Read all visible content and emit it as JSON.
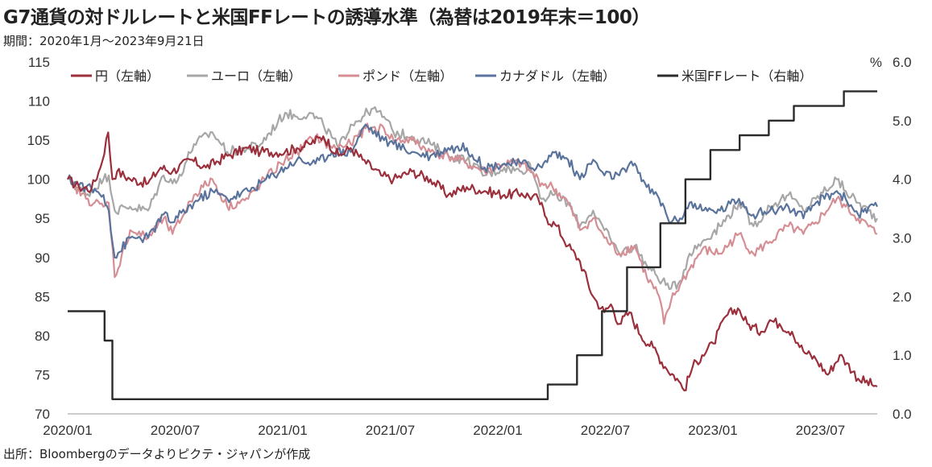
{
  "title": "G7通貨の対ドルレートと米国FFレートの誘導水準（為替は2019年末＝100）",
  "subtitle": "期間：2020年1月～2023年9月21日",
  "source": "出所：Bloombergのデータよりピクテ・ジャパンが作成",
  "chart_data": {
    "type": "line",
    "x_tick_labels": [
      "2020/01",
      "2020/07",
      "2021/01",
      "2021/07",
      "2022/01",
      "2022/07",
      "2023/01",
      "2023/07"
    ],
    "x_range": [
      "2020-01-01",
      "2023-09-21"
    ],
    "left_axis": {
      "ylim": [
        70,
        115
      ],
      "ticks": [
        70,
        75,
        80,
        85,
        90,
        95,
        100,
        105,
        110,
        115
      ]
    },
    "right_axis": {
      "unit": "%",
      "ylim": [
        0.0,
        6.0
      ],
      "ticks": [
        "0.0",
        "1.0",
        "2.0",
        "3.0",
        "4.0",
        "5.0",
        "6.0"
      ]
    },
    "grid": false,
    "legend_position": "top",
    "series": [
      {
        "name": "円（左軸）",
        "axis": "left",
        "color": "#9b2f3b",
        "points": [
          [
            "2020-01-01",
            100
          ],
          [
            "2020-01-20",
            99
          ],
          [
            "2020-02-10",
            98.8
          ],
          [
            "2020-02-25",
            101.5
          ],
          [
            "2020-03-09",
            106
          ],
          [
            "2020-03-16",
            100
          ],
          [
            "2020-03-24",
            101
          ],
          [
            "2020-04-15",
            100
          ],
          [
            "2020-05-15",
            99.5
          ],
          [
            "2020-06-05",
            101.5
          ],
          [
            "2020-06-25",
            101
          ],
          [
            "2020-07-25",
            102.5
          ],
          [
            "2020-08-20",
            101.5
          ],
          [
            "2020-09-25",
            103
          ],
          [
            "2020-10-30",
            104
          ],
          [
            "2020-11-20",
            103.5
          ],
          [
            "2020-12-31",
            103.5
          ],
          [
            "2021-01-20",
            104
          ],
          [
            "2021-02-10",
            104.5
          ],
          [
            "2021-03-05",
            105.5
          ],
          [
            "2021-03-31",
            103
          ],
          [
            "2021-04-20",
            104
          ],
          [
            "2021-05-10",
            102.5
          ],
          [
            "2021-06-10",
            100.5
          ],
          [
            "2021-07-01",
            100
          ],
          [
            "2021-08-01",
            101
          ],
          [
            "2021-09-01",
            100
          ],
          [
            "2021-10-01",
            98
          ],
          [
            "2021-11-01",
            99
          ],
          [
            "2021-12-01",
            98.5
          ],
          [
            "2022-01-03",
            98
          ],
          [
            "2022-02-01",
            98.2
          ],
          [
            "2022-03-01",
            97.5
          ],
          [
            "2022-03-15",
            95
          ],
          [
            "2022-04-01",
            94
          ],
          [
            "2022-04-20",
            91.5
          ],
          [
            "2022-05-10",
            89.5
          ],
          [
            "2022-06-01",
            85
          ],
          [
            "2022-06-20",
            83
          ],
          [
            "2022-07-01",
            84
          ],
          [
            "2022-07-15",
            81.5
          ],
          [
            "2022-08-01",
            83
          ],
          [
            "2022-08-20",
            80
          ],
          [
            "2022-09-10",
            78.5
          ],
          [
            "2022-09-30",
            76
          ],
          [
            "2022-10-20",
            74.5
          ],
          [
            "2022-11-01",
            73
          ],
          [
            "2022-11-15",
            76
          ],
          [
            "2022-12-01",
            77.5
          ],
          [
            "2022-12-20",
            79
          ],
          [
            "2023-01-10",
            82.5
          ],
          [
            "2023-01-30",
            83.5
          ],
          [
            "2023-02-15",
            81.5
          ],
          [
            "2023-03-10",
            80.5
          ],
          [
            "2023-03-25",
            82
          ],
          [
            "2023-04-10",
            81.5
          ],
          [
            "2023-05-01",
            80.5
          ],
          [
            "2023-05-20",
            78
          ],
          [
            "2023-06-10",
            77
          ],
          [
            "2023-06-30",
            75
          ],
          [
            "2023-07-20",
            77.5
          ],
          [
            "2023-08-01",
            76.5
          ],
          [
            "2023-08-20",
            74.5
          ],
          [
            "2023-09-21",
            73.5
          ]
        ]
      },
      {
        "name": "ユーロ（左軸）",
        "axis": "left",
        "color": "#a7a7a7",
        "points": [
          [
            "2020-01-01",
            100
          ],
          [
            "2020-02-01",
            98
          ],
          [
            "2020-03-01",
            100
          ],
          [
            "2020-03-10",
            100.5
          ],
          [
            "2020-03-20",
            96
          ],
          [
            "2020-04-15",
            96.5
          ],
          [
            "2020-05-15",
            96
          ],
          [
            "2020-06-10",
            100.5
          ],
          [
            "2020-07-01",
            99.5
          ],
          [
            "2020-07-31",
            104.5
          ],
          [
            "2020-08-31",
            106
          ],
          [
            "2020-09-25",
            103.5
          ],
          [
            "2020-10-30",
            104
          ],
          [
            "2020-11-20",
            104.5
          ],
          [
            "2020-12-31",
            108.5
          ],
          [
            "2021-01-20",
            108
          ],
          [
            "2021-02-10",
            108.5
          ],
          [
            "2021-03-05",
            107
          ],
          [
            "2021-03-31",
            104
          ],
          [
            "2021-04-20",
            107
          ],
          [
            "2021-05-10",
            108
          ],
          [
            "2021-05-25",
            109
          ],
          [
            "2021-06-15",
            108
          ],
          [
            "2021-07-01",
            106
          ],
          [
            "2021-08-01",
            105.5
          ],
          [
            "2021-09-01",
            104.5
          ],
          [
            "2021-10-01",
            103
          ],
          [
            "2021-11-01",
            102.5
          ],
          [
            "2021-12-01",
            100.5
          ],
          [
            "2022-01-03",
            101.5
          ],
          [
            "2022-02-01",
            101
          ],
          [
            "2022-02-15",
            102
          ],
          [
            "2022-03-07",
            97.5
          ],
          [
            "2022-03-25",
            98
          ],
          [
            "2022-04-20",
            97
          ],
          [
            "2022-05-10",
            94
          ],
          [
            "2022-06-01",
            96
          ],
          [
            "2022-06-20",
            93.5
          ],
          [
            "2022-07-15",
            90.5
          ],
          [
            "2022-08-10",
            91.5
          ],
          [
            "2022-08-30",
            89
          ],
          [
            "2022-09-25",
            87
          ],
          [
            "2022-10-10",
            86
          ],
          [
            "2022-10-25",
            87
          ],
          [
            "2022-11-10",
            90.5
          ],
          [
            "2022-12-01",
            92
          ],
          [
            "2022-12-31",
            94
          ],
          [
            "2023-02-01",
            97
          ],
          [
            "2023-02-25",
            94
          ],
          [
            "2023-03-25",
            96.5
          ],
          [
            "2023-04-25",
            98
          ],
          [
            "2023-05-20",
            96
          ],
          [
            "2023-06-10",
            97.5
          ],
          [
            "2023-07-15",
            100
          ],
          [
            "2023-07-30",
            98.5
          ],
          [
            "2023-08-20",
            97
          ],
          [
            "2023-09-21",
            95
          ]
        ]
      },
      {
        "name": "ポンド（左軸）",
        "axis": "left",
        "color": "#d58e93",
        "points": [
          [
            "2020-01-01",
            100
          ],
          [
            "2020-02-01",
            97.5
          ],
          [
            "2020-03-01",
            96.5
          ],
          [
            "2020-03-10",
            97
          ],
          [
            "2020-03-20",
            87.5
          ],
          [
            "2020-04-15",
            93.5
          ],
          [
            "2020-05-15",
            92.5
          ],
          [
            "2020-06-10",
            95
          ],
          [
            "2020-06-25",
            93
          ],
          [
            "2020-07-31",
            98
          ],
          [
            "2020-08-31",
            100
          ],
          [
            "2020-09-25",
            96.5
          ],
          [
            "2020-10-30",
            97.5
          ],
          [
            "2020-11-20",
            99.5
          ],
          [
            "2020-12-31",
            102.5
          ],
          [
            "2021-01-20",
            103.5
          ],
          [
            "2021-02-20",
            105.5
          ],
          [
            "2021-03-20",
            104
          ],
          [
            "2021-04-20",
            104.5
          ],
          [
            "2021-05-15",
            106.5
          ],
          [
            "2021-06-15",
            106.5
          ],
          [
            "2021-07-01",
            105
          ],
          [
            "2021-08-01",
            105
          ],
          [
            "2021-09-01",
            103.5
          ],
          [
            "2021-10-01",
            103
          ],
          [
            "2021-11-01",
            102
          ],
          [
            "2021-12-01",
            101
          ],
          [
            "2022-01-03",
            102
          ],
          [
            "2022-02-01",
            102
          ],
          [
            "2022-03-07",
            99.5
          ],
          [
            "2022-03-25",
            99
          ],
          [
            "2022-04-20",
            97
          ],
          [
            "2022-05-10",
            93.5
          ],
          [
            "2022-06-01",
            95
          ],
          [
            "2022-06-20",
            92.5
          ],
          [
            "2022-07-15",
            90.5
          ],
          [
            "2022-08-10",
            91.5
          ],
          [
            "2022-08-30",
            87.5
          ],
          [
            "2022-09-20",
            85
          ],
          [
            "2022-09-28",
            81.5
          ],
          [
            "2022-10-10",
            84.5
          ],
          [
            "2022-10-25",
            86.5
          ],
          [
            "2022-11-10",
            88.5
          ],
          [
            "2022-12-01",
            91
          ],
          [
            "2022-12-31",
            90.5
          ],
          [
            "2023-02-01",
            93
          ],
          [
            "2023-02-25",
            90.5
          ],
          [
            "2023-03-25",
            92
          ],
          [
            "2023-04-25",
            94
          ],
          [
            "2023-05-20",
            93
          ],
          [
            "2023-06-10",
            94.5
          ],
          [
            "2023-07-15",
            97.5
          ],
          [
            "2023-07-30",
            96.5
          ],
          [
            "2023-08-20",
            95
          ],
          [
            "2023-09-21",
            93
          ]
        ]
      },
      {
        "name": "カナダドル（左軸）",
        "axis": "left",
        "color": "#5a739c",
        "points": [
          [
            "2020-01-01",
            100
          ],
          [
            "2020-02-01",
            99
          ],
          [
            "2020-03-01",
            98
          ],
          [
            "2020-03-10",
            96
          ],
          [
            "2020-03-20",
            90
          ],
          [
            "2020-04-15",
            92.5
          ],
          [
            "2020-05-15",
            92.5
          ],
          [
            "2020-06-10",
            95.5
          ],
          [
            "2020-06-25",
            94.5
          ],
          [
            "2020-07-31",
            97
          ],
          [
            "2020-08-31",
            98.5
          ],
          [
            "2020-09-25",
            97.5
          ],
          [
            "2020-10-30",
            98.5
          ],
          [
            "2020-11-20",
            99.5
          ],
          [
            "2020-12-31",
            101.5
          ],
          [
            "2021-01-20",
            102.5
          ],
          [
            "2021-02-20",
            102
          ],
          [
            "2021-03-20",
            103.5
          ],
          [
            "2021-04-20",
            103.5
          ],
          [
            "2021-05-15",
            107
          ],
          [
            "2021-06-15",
            105
          ],
          [
            "2021-07-01",
            104.5
          ],
          [
            "2021-08-01",
            103.5
          ],
          [
            "2021-09-01",
            103
          ],
          [
            "2021-10-01",
            104
          ],
          [
            "2021-11-01",
            104
          ],
          [
            "2021-12-01",
            101.5
          ],
          [
            "2022-01-03",
            102
          ],
          [
            "2022-02-01",
            102
          ],
          [
            "2022-03-07",
            101.5
          ],
          [
            "2022-03-25",
            103.5
          ],
          [
            "2022-04-20",
            102.5
          ],
          [
            "2022-05-10",
            100
          ],
          [
            "2022-06-01",
            102.5
          ],
          [
            "2022-06-20",
            100.5
          ],
          [
            "2022-07-15",
            100.5
          ],
          [
            "2022-08-10",
            102
          ],
          [
            "2022-08-30",
            99
          ],
          [
            "2022-09-20",
            97.5
          ],
          [
            "2022-10-10",
            94.5
          ],
          [
            "2022-10-25",
            95
          ],
          [
            "2022-11-10",
            97
          ],
          [
            "2022-12-01",
            96
          ],
          [
            "2022-12-31",
            96
          ],
          [
            "2023-02-01",
            97.5
          ],
          [
            "2023-02-25",
            95.5
          ],
          [
            "2023-03-25",
            96
          ],
          [
            "2023-04-25",
            96.5
          ],
          [
            "2023-05-20",
            95
          ],
          [
            "2023-06-10",
            97
          ],
          [
            "2023-07-15",
            98.5
          ],
          [
            "2023-07-30",
            97.5
          ],
          [
            "2023-08-20",
            95.5
          ],
          [
            "2023-09-21",
            96.5
          ]
        ]
      },
      {
        "name": "米国FFレート（右軸）",
        "axis": "right",
        "color": "#2b2b2b",
        "step": true,
        "points": [
          [
            "2020-01-01",
            1.75
          ],
          [
            "2020-03-03",
            1.25
          ],
          [
            "2020-03-16",
            0.25
          ],
          [
            "2022-03-17",
            0.5
          ],
          [
            "2022-05-05",
            1.0
          ],
          [
            "2022-06-16",
            1.75
          ],
          [
            "2022-07-28",
            2.5
          ],
          [
            "2022-09-22",
            3.25
          ],
          [
            "2022-11-03",
            4.0
          ],
          [
            "2022-12-15",
            4.5
          ],
          [
            "2023-02-02",
            4.75
          ],
          [
            "2023-03-23",
            5.0
          ],
          [
            "2023-05-04",
            5.25
          ],
          [
            "2023-07-27",
            5.5
          ],
          [
            "2023-09-21",
            5.5
          ]
        ]
      }
    ]
  }
}
